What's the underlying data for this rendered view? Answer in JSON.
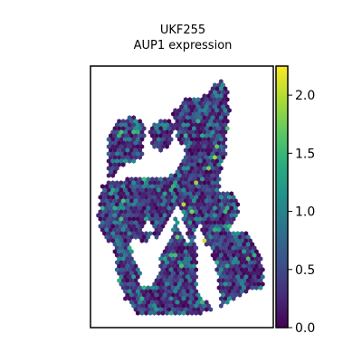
{
  "title": "UKF255",
  "subtitle": "AUP1 expression",
  "chart_data": {
    "type": "scatter",
    "title": "UKF255",
    "subtitle": "AUP1 expression",
    "xlabel": "",
    "ylabel": "",
    "axes_ticks": false,
    "marker": "hexagon",
    "colormap": "viridis",
    "colorbar": {
      "range": [
        0.0,
        2.25
      ],
      "ticks": [
        0.0,
        0.5,
        1.0,
        1.5,
        2.0
      ],
      "tick_labels": [
        "0.0",
        "0.5",
        "1.0",
        "1.5",
        "2.0"
      ]
    },
    "expression_summary": {
      "background_level": 0.3,
      "typical_range": [
        0.0,
        1.2
      ],
      "hotspots": [
        {
          "x": 0.59,
          "y": 0.73,
          "value": 1.9
        },
        {
          "x": 0.62,
          "y": 0.67,
          "value": 2.1
        },
        {
          "x": 0.52,
          "y": 0.53,
          "value": 2.0
        },
        {
          "x": 0.55,
          "y": 0.56,
          "value": 1.8
        },
        {
          "x": 0.57,
          "y": 0.45,
          "value": 1.9
        },
        {
          "x": 0.64,
          "y": 0.39,
          "value": 1.8
        },
        {
          "x": 0.69,
          "y": 0.31,
          "value": 1.7
        },
        {
          "x": 0.67,
          "y": 0.35,
          "value": 1.9
        },
        {
          "x": 0.47,
          "y": 0.65,
          "value": 1.7
        },
        {
          "x": 0.17,
          "y": 0.25,
          "value": 1.6
        },
        {
          "x": 0.5,
          "y": 0.13,
          "value": 1.7
        },
        {
          "x": 0.37,
          "y": 0.21,
          "value": 1.6
        },
        {
          "x": 0.31,
          "y": 0.62,
          "value": 1.6
        },
        {
          "x": 0.44,
          "y": 0.72,
          "value": 1.5
        },
        {
          "x": 0.74,
          "y": 0.55,
          "value": 1.5
        },
        {
          "x": 0.26,
          "y": 0.42,
          "value": 1.6
        }
      ]
    },
    "tissue_outline": [
      [
        0.23,
        0.72
      ],
      [
        0.22,
        0.66
      ],
      [
        0.32,
        0.68
      ],
      [
        0.34,
        0.63
      ],
      [
        0.29,
        0.63
      ],
      [
        0.31,
        0.58
      ],
      [
        0.36,
        0.66
      ],
      [
        0.43,
        0.58
      ],
      [
        0.48,
        0.52
      ],
      [
        0.54,
        0.67
      ],
      [
        0.6,
        0.61
      ],
      [
        0.63,
        0.69
      ],
      [
        0.66,
        0.7
      ],
      [
        0.68,
        0.76
      ],
      [
        0.7,
        0.83
      ],
      [
        0.71,
        0.94
      ],
      [
        0.68,
        0.94
      ],
      [
        0.66,
        0.91
      ],
      [
        0.58,
        0.87
      ],
      [
        0.58,
        0.68
      ],
      [
        0.57,
        0.64
      ],
      [
        0.53,
        0.68
      ],
      [
        0.49,
        0.64
      ],
      [
        0.47,
        0.56
      ],
      [
        0.43,
        0.68
      ],
      [
        0.38,
        0.74
      ],
      [
        0.37,
        0.81
      ],
      [
        0.31,
        0.85
      ],
      [
        0.26,
        0.83
      ],
      [
        0.28,
        0.77
      ],
      [
        0.24,
        0.75
      ]
    ]
  }
}
